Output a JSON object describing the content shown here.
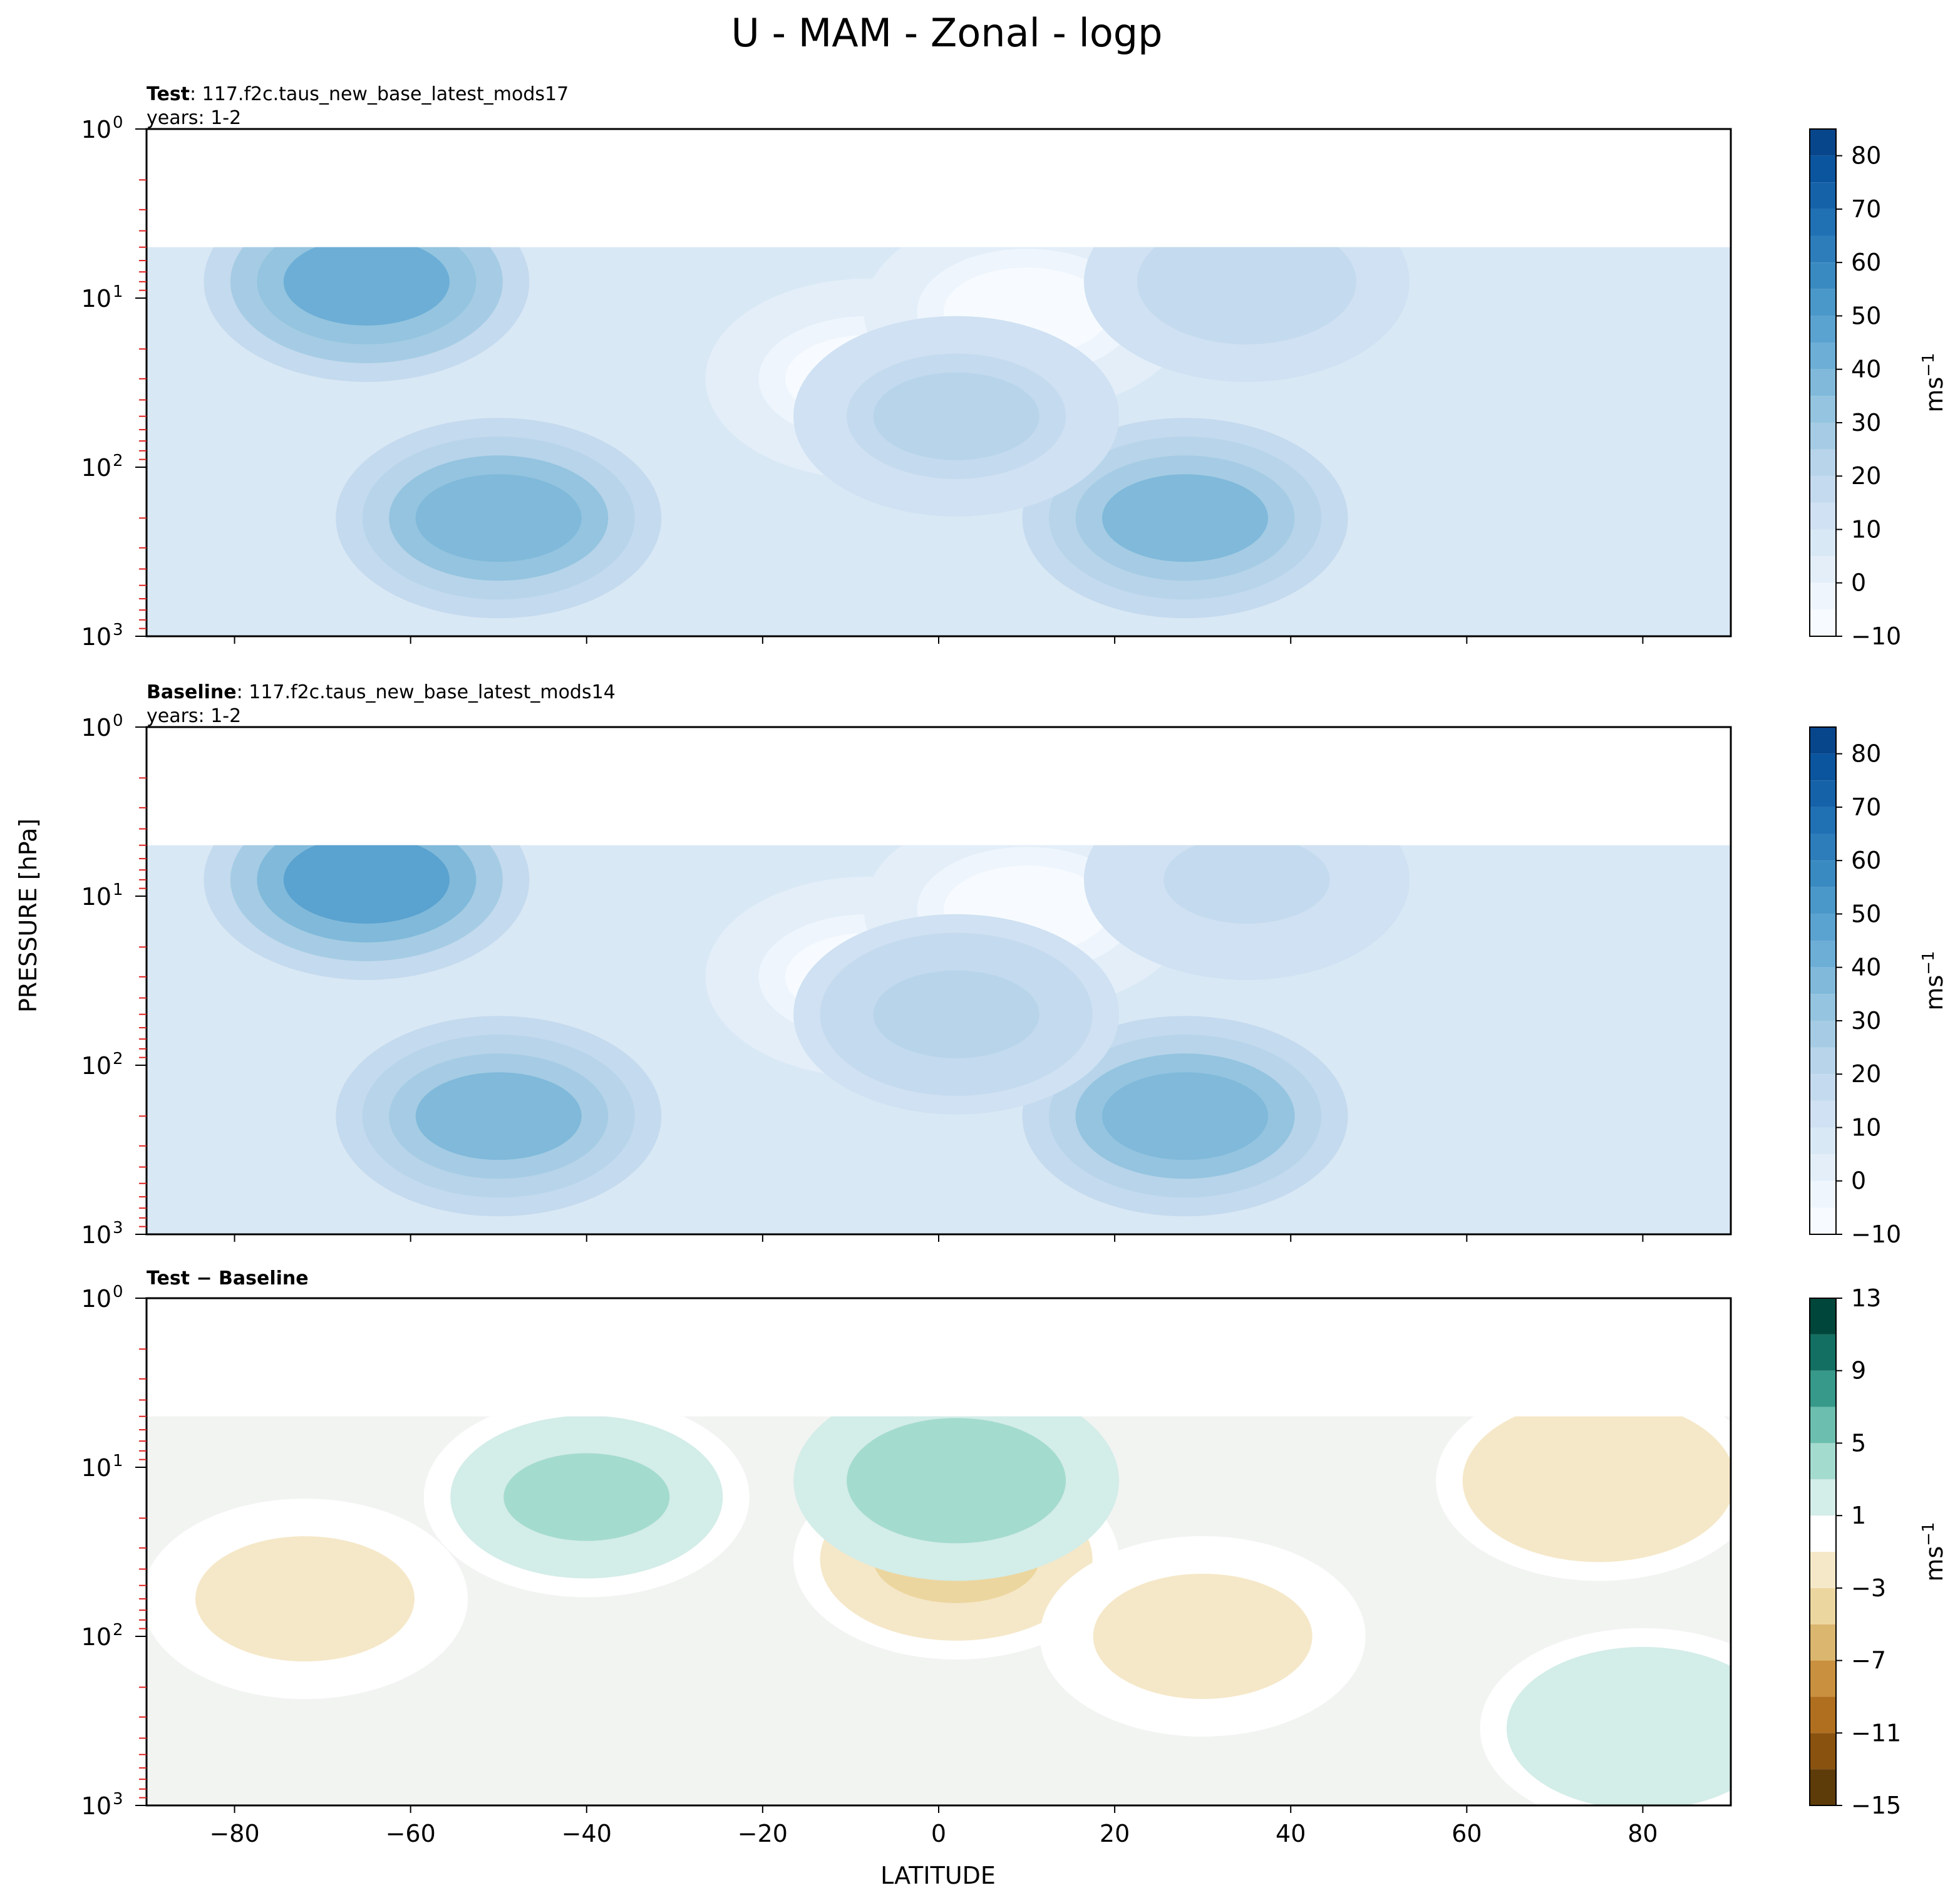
{
  "figure": {
    "suptitle": "U - MAM - Zonal - logp",
    "ylabel": "PRESSURE [hPa]",
    "xlabel": "LATITUDE"
  },
  "chart_data": [
    {
      "type": "heatmap",
      "id": "test",
      "title_bold": "Test",
      "title_rest": ": 117.f2c.taus_new_base_latest_mods17",
      "years": "years: 1-2",
      "xlim": [
        -90,
        90
      ],
      "ylim_hpa": [
        1000,
        1
      ],
      "ylog": true,
      "x_ticks": [
        -80,
        -60,
        -40,
        -20,
        0,
        20,
        40,
        60,
        80
      ],
      "y_ticks": [
        {
          "value": 1,
          "label": "10",
          "exp": "0"
        },
        {
          "value": 10,
          "label": "10",
          "exp": "1"
        },
        {
          "value": 100,
          "label": "10",
          "exp": "2"
        },
        {
          "value": 1000,
          "label": "10",
          "exp": "3"
        }
      ],
      "data_top_hpa": 5,
      "colorbar": {
        "unit": "ms",
        "unit_exp": "−1",
        "ticks": [
          "−10",
          "0",
          "10",
          "20",
          "30",
          "40",
          "50",
          "60",
          "70",
          "80"
        ],
        "range": [
          -10,
          85
        ],
        "levels": [
          -10,
          -5,
          0,
          5,
          10,
          15,
          20,
          25,
          30,
          35,
          40,
          45,
          50,
          55,
          60,
          65,
          70,
          75,
          80,
          85
        ],
        "palette": [
          "#f7fbff",
          "#eef5fc",
          "#e3eef9",
          "#d9e8f5",
          "#cfe1f2",
          "#c4daee",
          "#b7d4ea",
          "#a5cce4",
          "#94c4df",
          "#80b9da",
          "#6caed6",
          "#5aa2cf",
          "#4a98c9",
          "#3a8ac2",
          "#2d7dbb",
          "#2070b4",
          "#1562a9",
          "#0b559f",
          "#08468b"
        ]
      },
      "zones": [
        {
          "lat": -65,
          "p": 8,
          "value": 42
        },
        {
          "lat": -50,
          "p": 200,
          "value": 38
        },
        {
          "lat": 28,
          "p": 200,
          "value": 36
        },
        {
          "lat": -8,
          "p": 30,
          "value": -8
        },
        {
          "lat": 10,
          "p": 12,
          "value": -6
        },
        {
          "lat": 2,
          "p": 50,
          "value": 20
        },
        {
          "lat": 35,
          "p": 8,
          "value": 18
        }
      ]
    },
    {
      "type": "heatmap",
      "id": "baseline",
      "title_bold": "Baseline",
      "title_rest": ": 117.f2c.taus_new_base_latest_mods14",
      "years": "years: 1-2",
      "xlim": [
        -90,
        90
      ],
      "ylim_hpa": [
        1000,
        1
      ],
      "ylog": true,
      "x_ticks": [
        -80,
        -60,
        -40,
        -20,
        0,
        20,
        40,
        60,
        80
      ],
      "y_ticks": [
        {
          "value": 1,
          "label": "10",
          "exp": "0"
        },
        {
          "value": 10,
          "label": "10",
          "exp": "1"
        },
        {
          "value": 100,
          "label": "10",
          "exp": "2"
        },
        {
          "value": 1000,
          "label": "10",
          "exp": "3"
        }
      ],
      "data_top_hpa": 5,
      "colorbar": {
        "unit": "ms",
        "unit_exp": "−1",
        "ticks": [
          "−10",
          "0",
          "10",
          "20",
          "30",
          "40",
          "50",
          "60",
          "70",
          "80"
        ],
        "range": [
          -10,
          85
        ],
        "levels": [
          -10,
          -5,
          0,
          5,
          10,
          15,
          20,
          25,
          30,
          35,
          40,
          45,
          50,
          55,
          60,
          65,
          70,
          75,
          80,
          85
        ],
        "palette": [
          "#f7fbff",
          "#eef5fc",
          "#e3eef9",
          "#d9e8f5",
          "#cfe1f2",
          "#c4daee",
          "#b7d4ea",
          "#a5cce4",
          "#94c4df",
          "#80b9da",
          "#6caed6",
          "#5aa2cf",
          "#4a98c9",
          "#3a8ac2",
          "#2d7dbb",
          "#2070b4",
          "#1562a9",
          "#0b559f",
          "#08468b"
        ]
      },
      "zones": [
        {
          "lat": -65,
          "p": 8,
          "value": 45
        },
        {
          "lat": -50,
          "p": 200,
          "value": 36
        },
        {
          "lat": 28,
          "p": 200,
          "value": 38
        },
        {
          "lat": -8,
          "p": 30,
          "value": -8
        },
        {
          "lat": 10,
          "p": 12,
          "value": -6
        },
        {
          "lat": 2,
          "p": 50,
          "value": 22
        },
        {
          "lat": 35,
          "p": 8,
          "value": 16
        }
      ]
    },
    {
      "type": "heatmap",
      "id": "diff",
      "title_bold": "Test − Baseline",
      "title_rest": "",
      "years": "",
      "xlim": [
        -90,
        90
      ],
      "ylim_hpa": [
        1000,
        1
      ],
      "ylog": true,
      "x_ticks": [
        -80,
        -60,
        -40,
        -20,
        0,
        20,
        40,
        60,
        80
      ],
      "y_ticks": [
        {
          "value": 1,
          "label": "10",
          "exp": "0"
        },
        {
          "value": 10,
          "label": "10",
          "exp": "1"
        },
        {
          "value": 100,
          "label": "10",
          "exp": "2"
        },
        {
          "value": 1000,
          "label": "10",
          "exp": "3"
        }
      ],
      "data_top_hpa": 5,
      "colorbar": {
        "unit": "ms",
        "unit_exp": "−1",
        "ticks": [
          "−15",
          "−11",
          "−7",
          "−3",
          "1",
          "5",
          "9",
          "13"
        ],
        "range": [
          -15,
          13
        ],
        "levels": [
          -15,
          -13,
          -11,
          -9,
          -7,
          -5,
          -3,
          -1,
          1,
          3,
          5,
          7,
          9,
          11,
          13
        ],
        "palette": [
          "#5e3c0a",
          "#8a520f",
          "#b06f1f",
          "#c9903f",
          "#dbb66f",
          "#ecd69f",
          "#f5e8c8",
          "#ffffff",
          "#d3ede8",
          "#a4dbcf",
          "#6cbfae",
          "#36998a",
          "#136f61",
          "#00463a"
        ]
      },
      "zones": [
        {
          "lat": -72,
          "p": 60,
          "value": -2
        },
        {
          "lat": 2,
          "p": 35,
          "value": -4
        },
        {
          "lat": 30,
          "p": 100,
          "value": -2
        },
        {
          "lat": 75,
          "p": 12,
          "value": -3
        },
        {
          "lat": -40,
          "p": 15,
          "value": 3
        },
        {
          "lat": 2,
          "p": 12,
          "value": 4
        },
        {
          "lat": 80,
          "p": 350,
          "value": 2
        }
      ]
    }
  ]
}
